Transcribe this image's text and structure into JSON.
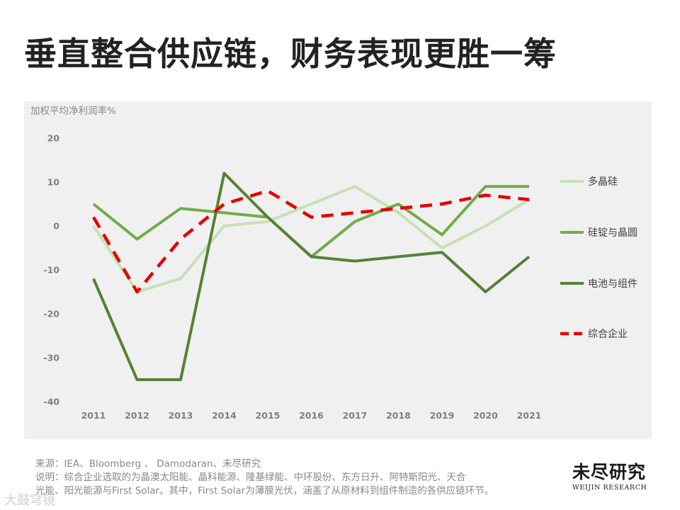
{
  "page": {
    "title": "垂直整合供应链，财务表现更胜一筹"
  },
  "notes": {
    "source_label": "来源：",
    "source_text": "IEA、Bloomberg 、 Damodaran、未尽研究",
    "desc_label": "说明：",
    "desc_line1": "综合企业选取的为晶澳太阳能、晶科能源、隆基绿能、中环股份、东方日升、阿特斯阳光、天合",
    "desc_line2": "光能、阳光能源与First Solar。其中，First Solar为薄膜光伏，涵盖了从原材料到组件制造的各供应链环节。"
  },
  "logo": {
    "cn": "未尽研究",
    "en": "WEIJIN RESEARCH"
  },
  "watermark": {
    "text": "大鼓穹镜"
  },
  "chart_data": {
    "type": "line",
    "ylabel": "加权平均净利润率%",
    "ylim": [
      -40,
      20
    ],
    "yticks": [
      20,
      10,
      0,
      -10,
      -20,
      -30,
      -40
    ],
    "categories": [
      "2011",
      "2012",
      "2013",
      "2014",
      "2015",
      "2016",
      "2017",
      "2018",
      "2019",
      "2020",
      "2021"
    ],
    "grid": false,
    "legend_position": "right",
    "series": [
      {
        "name": "多晶硅",
        "color": "#c6e0b4",
        "dashed": false,
        "values": [
          0,
          -15,
          -12,
          0,
          1,
          5,
          9,
          3,
          -5,
          0,
          6
        ]
      },
      {
        "name": "硅锭与晶圆",
        "color": "#70ad47",
        "dashed": false,
        "values": [
          5,
          -3,
          4,
          3,
          2,
          -7,
          1,
          5,
          -2,
          9,
          9
        ]
      },
      {
        "name": "电池与组件",
        "color": "#548235",
        "dashed": false,
        "values": [
          -12,
          -35,
          -35,
          12,
          2,
          -7,
          -8,
          -7,
          -6,
          -15,
          -7
        ]
      },
      {
        "name": "综合企业",
        "color": "#e60000",
        "dashed": true,
        "values": [
          2,
          -15,
          -3,
          5,
          8,
          2,
          3,
          4,
          5,
          7,
          6
        ]
      }
    ]
  }
}
